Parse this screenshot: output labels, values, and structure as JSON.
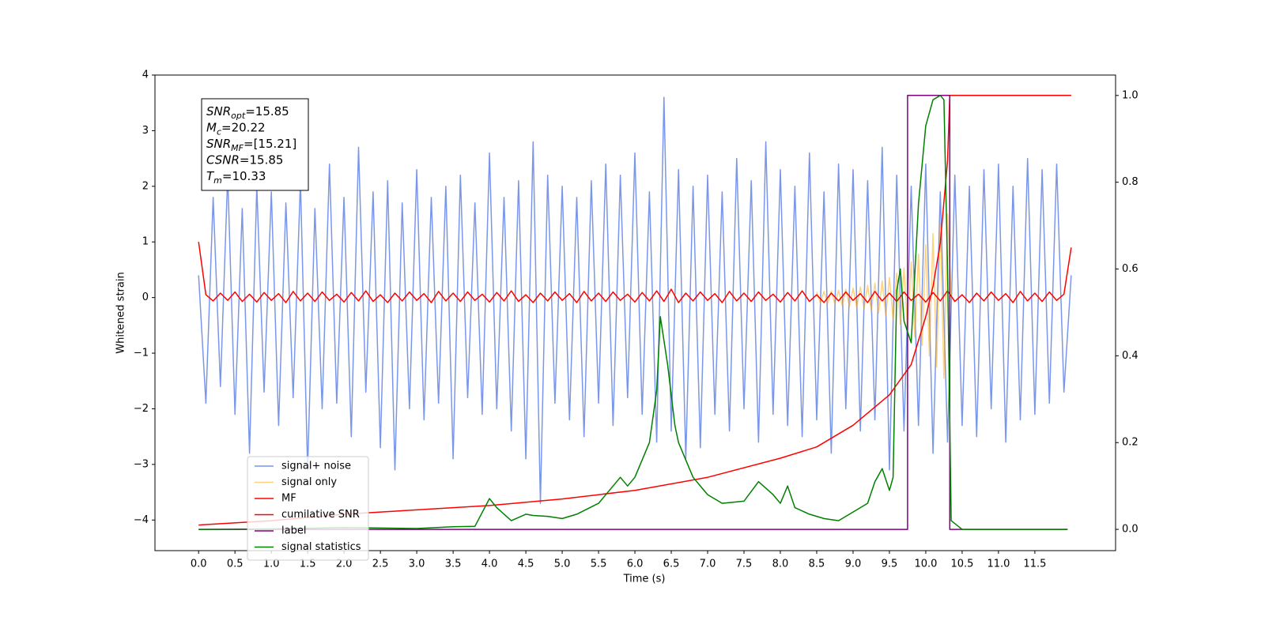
{
  "chart_data": {
    "type": "line",
    "xlabel": "Time (s)",
    "ylabel": "Whitened strain",
    "xlim": [
      -0.6,
      12.61
    ],
    "ylim": [
      -4.55,
      4.0
    ],
    "y2lim": [
      -0.049,
      1.047
    ],
    "xticks": [
      {
        "value": 0,
        "label": "0.0"
      },
      0.5,
      {
        "value": 1,
        "label": "1.0"
      },
      1.5,
      {
        "value": 2,
        "label": "2.0"
      },
      2.5,
      {
        "value": 3,
        "label": "3.0"
      },
      3.5,
      {
        "value": 4,
        "label": "4.0"
      },
      4.5,
      {
        "value": 5,
        "label": "5.0"
      },
      5.5,
      {
        "value": 6,
        "label": "6.0"
      },
      6.5,
      {
        "value": 7,
        "label": "7.0"
      },
      7.5,
      {
        "value": 8,
        "label": "8.0"
      },
      8.5,
      {
        "value": 9,
        "label": "9.0"
      },
      9.5,
      {
        "value": 10,
        "label": "10.0"
      },
      10.5,
      {
        "value": 11,
        "label": "11.0"
      },
      11.5
    ],
    "yticks": [
      {
        "value": -4,
        "label": "−4"
      },
      {
        "value": -3,
        "label": "−3"
      },
      {
        "value": -2,
        "label": "−2"
      },
      {
        "value": -1,
        "label": "−1"
      },
      0,
      1,
      2,
      3,
      4
    ],
    "y2ticks": [
      {
        "value": 0,
        "label": "0.0"
      },
      0.2,
      0.4,
      0.6,
      0.8,
      {
        "value": 1,
        "label": "1.0"
      }
    ],
    "grid": false,
    "legend": "lower left",
    "annotations": [
      {
        "symbol": "SNR",
        "subscript": "opt",
        "text": "=15.85"
      },
      {
        "symbol": "M",
        "subscript": "c",
        "text": "=20.22"
      },
      {
        "symbol": "SNR",
        "subscript": "MF",
        "text": "=[15.21]"
      },
      {
        "symbol": "CSNR",
        "text": "=15.85"
      },
      {
        "symbol": "T",
        "subscript": "m",
        "text": "=10.33"
      }
    ],
    "x": [
      0,
      0.1,
      0.2,
      0.3,
      0.4,
      0.5,
      0.6,
      0.7,
      0.8,
      0.9,
      1,
      1.1,
      1.2,
      1.3,
      1.4,
      1.5,
      1.6,
      1.7,
      1.8,
      1.9,
      2,
      2.1,
      2.2,
      2.3,
      2.4,
      2.5,
      2.6,
      2.7,
      2.8,
      2.9,
      3,
      3.1,
      3.2,
      3.3,
      3.4,
      3.5,
      3.6,
      3.7,
      3.8,
      3.9,
      4,
      4.1,
      4.2,
      4.3,
      4.4,
      4.5,
      4.6,
      4.7,
      4.8,
      4.9,
      5,
      5.1,
      5.2,
      5.3,
      5.4,
      5.5,
      5.6,
      5.7,
      5.8,
      5.9,
      6,
      6.1,
      6.2,
      6.3,
      6.4,
      6.5,
      6.6,
      6.7,
      6.8,
      6.9,
      7,
      7.1,
      7.2,
      7.3,
      7.4,
      7.5,
      7.6,
      7.7,
      7.8,
      7.9,
      8,
      8.1,
      8.2,
      8.3,
      8.4,
      8.5,
      8.6,
      8.7,
      8.8,
      8.9,
      9,
      9.1,
      9.2,
      9.3,
      9.4,
      9.5,
      9.6,
      9.7,
      9.8,
      9.9,
      10,
      10.1,
      10.2,
      10.3,
      10.4,
      10.5,
      10.6,
      10.7,
      10.8,
      10.9,
      11,
      11.1,
      11.2,
      11.3,
      11.4,
      11.5,
      11.6,
      11.7,
      11.8,
      11.9,
      12
    ],
    "series": [
      {
        "name": "signal+ noise",
        "color": "#4169e1",
        "alpha": 0.7,
        "values": [
          0.4,
          -1.9,
          1.8,
          -1.6,
          2.2,
          -2.1,
          1.6,
          -2.8,
          2.0,
          -1.7,
          1.9,
          -2.3,
          1.7,
          -1.8,
          2.1,
          -3.1,
          1.6,
          -2.0,
          2.4,
          -1.9,
          1.8,
          -2.5,
          2.7,
          -1.7,
          1.9,
          -2.7,
          2.1,
          -3.1,
          1.7,
          -2.0,
          2.3,
          -2.2,
          1.8,
          -1.9,
          2.0,
          -2.9,
          2.2,
          -1.8,
          1.7,
          -2.1,
          2.6,
          -2.0,
          1.8,
          -2.4,
          2.1,
          -2.9,
          2.8,
          -3.7,
          2.2,
          -1.9,
          2.0,
          -2.2,
          1.8,
          -2.5,
          2.1,
          -1.9,
          2.4,
          -2.3,
          2.2,
          -1.8,
          2.6,
          -2.1,
          1.9,
          -2.6,
          3.6,
          -2.4,
          2.3,
          -2.9,
          2.0,
          -2.7,
          2.2,
          -2.1,
          1.9,
          -2.4,
          2.5,
          -2.0,
          2.1,
          -2.6,
          2.8,
          -2.1,
          2.3,
          -2.3,
          2.0,
          -2.5,
          2.6,
          -2.2,
          1.9,
          -2.8,
          2.4,
          -2.0,
          2.3,
          -2.4,
          2.1,
          -2.2,
          2.7,
          -3.1,
          2.2,
          -2.4,
          2.0,
          -2.3,
          2.4,
          -2.8,
          1.9,
          -2.6,
          2.2,
          -2.3,
          2.0,
          -2.5,
          2.3,
          -2.0,
          2.4,
          -2.6,
          2.0,
          -2.2,
          2.5,
          -2.1,
          2.3,
          -1.9,
          2.4,
          -1.7,
          0.4
        ]
      },
      {
        "name": "signal only",
        "color": "#ffa500",
        "alpha": 0.5,
        "x": [
          8.5,
          8.55,
          8.6,
          8.65,
          8.7,
          8.75,
          8.8,
          8.85,
          8.9,
          8.95,
          9.0,
          9.05,
          9.1,
          9.15,
          9.2,
          9.25,
          9.3,
          9.35,
          9.4,
          9.45,
          9.5,
          9.55,
          9.6,
          9.65,
          9.7,
          9.75,
          9.8,
          9.85,
          9.9,
          9.95,
          10.0,
          10.05,
          10.1,
          10.15,
          10.2,
          10.25,
          10.3,
          10.35
        ],
        "values": [
          0.1,
          -0.1,
          0.11,
          -0.11,
          0.12,
          -0.12,
          0.13,
          -0.14,
          0.15,
          -0.16,
          0.17,
          -0.18,
          0.19,
          -0.2,
          0.22,
          -0.24,
          0.26,
          -0.28,
          0.3,
          -0.33,
          0.36,
          -0.4,
          0.44,
          -0.48,
          0.53,
          -0.58,
          0.64,
          -0.71,
          0.78,
          -0.86,
          0.95,
          -1.05,
          1.15,
          -1.25,
          1.35,
          -1.45,
          1.5,
          0
        ]
      },
      {
        "name": "MF",
        "color": "red",
        "values": [
          1.0,
          0.05,
          -0.06,
          0.08,
          -0.05,
          0.1,
          -0.07,
          0.06,
          -0.08,
          0.09,
          -0.05,
          0.07,
          -0.09,
          0.11,
          -0.06,
          0.08,
          -0.07,
          0.1,
          -0.05,
          0.06,
          -0.08,
          0.09,
          -0.06,
          0.12,
          -0.07,
          0.05,
          -0.09,
          0.08,
          -0.06,
          0.1,
          -0.05,
          0.07,
          -0.09,
          0.11,
          -0.06,
          0.08,
          -0.07,
          0.1,
          -0.05,
          0.06,
          -0.08,
          0.09,
          -0.06,
          0.12,
          -0.07,
          0.05,
          -0.09,
          0.08,
          -0.06,
          0.1,
          -0.05,
          0.07,
          -0.09,
          0.11,
          -0.06,
          0.08,
          -0.07,
          0.1,
          -0.05,
          0.06,
          -0.08,
          0.09,
          -0.06,
          0.12,
          -0.07,
          0.15,
          -0.09,
          0.08,
          -0.06,
          0.1,
          -0.05,
          0.07,
          -0.09,
          0.11,
          -0.06,
          0.08,
          -0.07,
          0.1,
          -0.05,
          0.06,
          -0.08,
          0.09,
          -0.06,
          0.12,
          -0.07,
          0.05,
          -0.09,
          0.08,
          -0.06,
          0.1,
          -0.05,
          0.07,
          -0.09,
          0.11,
          -0.06,
          0.08,
          -0.07,
          0.1,
          -0.05,
          0.06,
          -0.08,
          0.09,
          -0.06,
          0.12,
          -0.07,
          0.05,
          -0.09,
          0.08,
          -0.06,
          0.1,
          -0.05,
          0.07,
          -0.09,
          0.11,
          -0.06,
          0.08,
          -0.07,
          0.1,
          -0.05,
          0.06,
          0.9
        ]
      },
      {
        "name": "cumilative SNR",
        "color": "red",
        "axis": "y2",
        "x": [
          0,
          1,
          2,
          3,
          4,
          5,
          6,
          7,
          8,
          8.5,
          9,
          9.5,
          9.8,
          10,
          10.1,
          10.2,
          10.3,
          10.33,
          12
        ],
        "values": [
          0.01,
          0.02,
          0.035,
          0.045,
          0.055,
          0.07,
          0.09,
          0.12,
          0.164,
          0.19,
          0.24,
          0.31,
          0.38,
          0.49,
          0.56,
          0.66,
          0.85,
          1.0,
          1.0
        ]
      },
      {
        "name": "label",
        "color": "purple",
        "axis": "y2",
        "x": [
          0,
          9.75,
          9.75,
          10.33,
          10.33,
          11.95
        ],
        "values": [
          0,
          0,
          1,
          1,
          0,
          0
        ]
      },
      {
        "name": "signal statistics",
        "color": "green",
        "axis": "y2",
        "x": [
          0,
          1,
          2,
          2.5,
          3,
          3.5,
          3.8,
          4.0,
          4.1,
          4.3,
          4.5,
          4.6,
          4.8,
          5.0,
          5.2,
          5.5,
          5.8,
          5.9,
          6.0,
          6.2,
          6.3,
          6.35,
          6.45,
          6.55,
          6.6,
          6.7,
          6.8,
          7.0,
          7.2,
          7.5,
          7.7,
          7.9,
          8.0,
          8.1,
          8.2,
          8.4,
          8.6,
          8.8,
          9.0,
          9.2,
          9.3,
          9.4,
          9.5,
          9.55,
          9.6,
          9.65,
          9.7,
          9.8,
          9.9,
          10.0,
          10.1,
          10.2,
          10.25,
          10.3,
          10.35,
          10.5,
          11.95
        ],
        "values": [
          0,
          0.001,
          0.004,
          0.003,
          0.002,
          0.006,
          0.007,
          0.071,
          0.05,
          0.02,
          0.035,
          0.032,
          0.03,
          0.025,
          0.035,
          0.06,
          0.12,
          0.1,
          0.12,
          0.2,
          0.32,
          0.49,
          0.38,
          0.24,
          0.2,
          0.16,
          0.12,
          0.08,
          0.06,
          0.065,
          0.11,
          0.08,
          0.06,
          0.1,
          0.05,
          0.035,
          0.025,
          0.02,
          0.04,
          0.06,
          0.11,
          0.14,
          0.09,
          0.12,
          0.55,
          0.6,
          0.48,
          0.43,
          0.75,
          0.93,
          0.99,
          1.0,
          0.99,
          0.6,
          0.02,
          0.0,
          0.0
        ]
      }
    ]
  }
}
